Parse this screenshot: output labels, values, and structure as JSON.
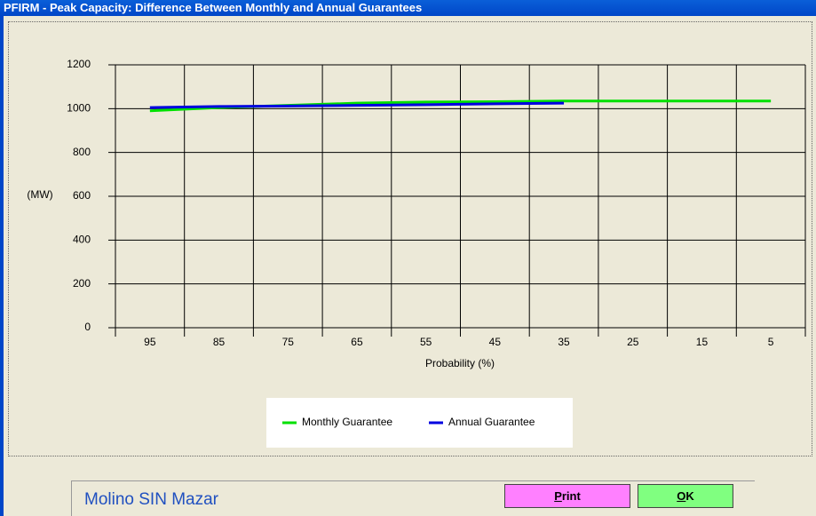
{
  "window": {
    "title": "PFIRM - Peak Capacity: Difference Between Monthly and Annual Guarantees"
  },
  "chart_data": {
    "type": "line",
    "y_label": "(MW)",
    "x_label": "Probability (%)",
    "categories": [
      "95",
      "85",
      "75",
      "65",
      "55",
      "45",
      "35",
      "25",
      "15",
      "5"
    ],
    "series": [
      {
        "name": "Monthly Guarantee",
        "color": "#00e000",
        "values": [
          990,
          1005,
          1015,
          1025,
          1030,
          1032,
          1035,
          1035,
          1035,
          1035
        ]
      },
      {
        "name": "Annual Guarantee",
        "color": "#0000e0",
        "values": [
          1005,
          1010,
          1012,
          1015,
          1018,
          1022,
          1025,
          null,
          null,
          null
        ]
      }
    ],
    "ylim": [
      0,
      1200
    ],
    "yticks": [
      0,
      200,
      400,
      600,
      800,
      1000,
      1200
    ],
    "grid": true
  },
  "footer": {
    "project": "Molino SIN Mazar",
    "buttons": [
      "Print",
      "OK"
    ]
  }
}
